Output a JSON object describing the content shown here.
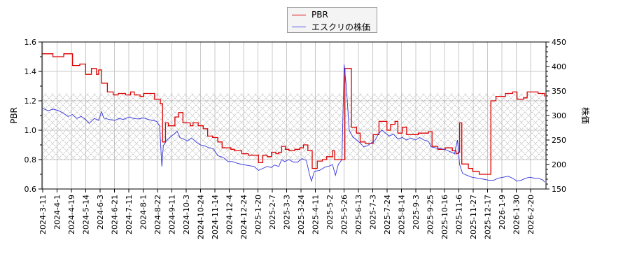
{
  "chart_data": {
    "type": "line",
    "title": "",
    "legend": {
      "position": "top-center",
      "entries": [
        {
          "label": "PBR",
          "color": "#dd0000"
        },
        {
          "label": "エスクリの株価",
          "color": "#3333dd"
        }
      ]
    },
    "y_left": {
      "label": "PBR",
      "range": [
        0.6,
        1.6
      ],
      "ticks": [
        "0.6",
        "0.8",
        "1.0",
        "1.2",
        "1.4",
        "1.6"
      ],
      "minor_step": 0.1
    },
    "y_right": {
      "label": "株価",
      "range": [
        150,
        450
      ],
      "ticks": [
        "150",
        "200",
        "250",
        "300",
        "350",
        "400",
        "450"
      ],
      "minor_step": 10
    },
    "x_ticks": [
      "2024-3-11",
      "2024-4-1",
      "2024-4-19",
      "2024-5-14",
      "2024-6-3",
      "2024-6-21",
      "2024-7-11",
      "2024-8-1",
      "2024-8-22",
      "2024-9-11",
      "2024-10-3",
      "2024-10-24",
      "2024-11-14",
      "2024-12-4",
      "2024-12-24",
      "2025-1-20",
      "2025-2-7",
      "2025-3-3",
      "2025-3-24",
      "2025-4-11",
      "2025-5-2",
      "2025-5-26",
      "2025-6-13",
      "2025-7-3",
      "2025-7-24",
      "2025-8-14",
      "2025-9-3",
      "2025-9-25",
      "2025-10-16",
      "2025-11-6",
      "2025-11-27",
      "2025-12-17",
      "2026-1-9",
      "2026-1-30",
      "2026-2-20"
    ],
    "grid": true,
    "shaded_band": {
      "pbr_range": [
        0.8,
        1.25
      ],
      "price_range": [
        210,
        344
      ],
      "pattern": "crosshatch"
    },
    "series": [
      {
        "name": "PBR",
        "axis": "left",
        "color": "#dd0000",
        "step": true,
        "points": [
          [
            0,
            1.52
          ],
          [
            1.5,
            1.5
          ],
          [
            3,
            1.52
          ],
          [
            4.2,
            1.44
          ],
          [
            5.2,
            1.45
          ],
          [
            6,
            1.38
          ],
          [
            6.8,
            1.42
          ],
          [
            7.5,
            1.38
          ],
          [
            7.8,
            1.41
          ],
          [
            8.2,
            1.32
          ],
          [
            9,
            1.26
          ],
          [
            9.8,
            1.24
          ],
          [
            10.5,
            1.25
          ],
          [
            11.5,
            1.24
          ],
          [
            12.2,
            1.26
          ],
          [
            12.7,
            1.24
          ],
          [
            13.5,
            1.23
          ],
          [
            14,
            1.25
          ],
          [
            15.5,
            1.21
          ],
          [
            16.3,
            1.18
          ],
          [
            16.6,
            0.92
          ],
          [
            17,
            1.05
          ],
          [
            17.4,
            1.03
          ],
          [
            18,
            1.03
          ],
          [
            18.3,
            1.09
          ],
          [
            18.8,
            1.12
          ],
          [
            19.4,
            1.05
          ],
          [
            20.4,
            1.03
          ],
          [
            20.8,
            1.05
          ],
          [
            21.5,
            1.03
          ],
          [
            22.2,
            1.01
          ],
          [
            22.8,
            0.96
          ],
          [
            23.5,
            0.95
          ],
          [
            24.2,
            0.92
          ],
          [
            24.8,
            0.88
          ],
          [
            26,
            0.87
          ],
          [
            26.5,
            0.86
          ],
          [
            27.5,
            0.84
          ],
          [
            28.4,
            0.83
          ],
          [
            29.2,
            0.83
          ],
          [
            29.8,
            0.78
          ],
          [
            30.4,
            0.83
          ],
          [
            31,
            0.82
          ],
          [
            31.6,
            0.85
          ],
          [
            32.2,
            0.84
          ],
          [
            32.6,
            0.85
          ],
          [
            33,
            0.89
          ],
          [
            33.5,
            0.87
          ],
          [
            34,
            0.86
          ],
          [
            34.8,
            0.87
          ],
          [
            35.5,
            0.88
          ],
          [
            36,
            0.9
          ],
          [
            36.6,
            0.86
          ],
          [
            37.2,
            0.74
          ],
          [
            37.9,
            0.79
          ],
          [
            38.6,
            0.8
          ],
          [
            39.2,
            0.82
          ],
          [
            39.6,
            0.82
          ],
          [
            40,
            0.86
          ],
          [
            40.3,
            0.8
          ],
          [
            41.2,
            0.8
          ],
          [
            41.7,
            1.42
          ],
          [
            42.6,
            1.02
          ],
          [
            43.3,
            0.98
          ],
          [
            43.8,
            0.92
          ],
          [
            44.5,
            0.91
          ],
          [
            45.3,
            0.91
          ],
          [
            45.6,
            0.97
          ],
          [
            46,
            0.97
          ],
          [
            46.4,
            1.06
          ],
          [
            47.5,
            1.0
          ],
          [
            48,
            1.04
          ],
          [
            48.6,
            1.06
          ],
          [
            49,
            0.98
          ],
          [
            49.6,
            1.02
          ],
          [
            50.2,
            0.97
          ],
          [
            51,
            0.97
          ],
          [
            51.8,
            0.98
          ],
          [
            53.2,
            0.99
          ],
          [
            53.7,
            0.89
          ],
          [
            54.5,
            0.87
          ],
          [
            55.5,
            0.88
          ],
          [
            56.5,
            0.86
          ],
          [
            57,
            0.84
          ],
          [
            57.3,
            0.85
          ],
          [
            57.5,
            1.05
          ],
          [
            57.8,
            0.77
          ],
          [
            58.7,
            0.74
          ],
          [
            59.3,
            0.72
          ],
          [
            60.2,
            0.7
          ],
          [
            61.3,
            0.7
          ],
          [
            61.8,
            1.2
          ],
          [
            62.5,
            1.23
          ],
          [
            63.8,
            1.25
          ],
          [
            64.8,
            1.26
          ],
          [
            65.4,
            1.21
          ],
          [
            66.3,
            1.22
          ],
          [
            66.8,
            1.26
          ],
          [
            68.3,
            1.25
          ],
          [
            69.2,
            1.23
          ]
        ]
      },
      {
        "name": "エスクリの株価",
        "axis": "right",
        "color": "#3333dd",
        "step": false,
        "points": [
          [
            0,
            315
          ],
          [
            0.8,
            310
          ],
          [
            1.6,
            313
          ],
          [
            2.4,
            309
          ],
          [
            3,
            304
          ],
          [
            3.6,
            298
          ],
          [
            4.2,
            302
          ],
          [
            4.8,
            294
          ],
          [
            5.4,
            298
          ],
          [
            6,
            292
          ],
          [
            6.5,
            284
          ],
          [
            7.2,
            294
          ],
          [
            7.8,
            290
          ],
          [
            8.2,
            308
          ],
          [
            8.5,
            295
          ],
          [
            9.2,
            292
          ],
          [
            10,
            290
          ],
          [
            10.6,
            294
          ],
          [
            11.2,
            292
          ],
          [
            12,
            297
          ],
          [
            12.6,
            294
          ],
          [
            13.2,
            293
          ],
          [
            14,
            295
          ],
          [
            14.6,
            292
          ],
          [
            15.2,
            290
          ],
          [
            15.8,
            288
          ],
          [
            16.2,
            278
          ],
          [
            16.5,
            196
          ],
          [
            16.7,
            238
          ],
          [
            17.2,
            250
          ],
          [
            17.8,
            258
          ],
          [
            18.2,
            262
          ],
          [
            18.6,
            268
          ],
          [
            19,
            255
          ],
          [
            19.5,
            252
          ],
          [
            20,
            248
          ],
          [
            20.6,
            254
          ],
          [
            21.2,
            246
          ],
          [
            21.8,
            240
          ],
          [
            22.4,
            238
          ],
          [
            23,
            234
          ],
          [
            23.6,
            232
          ],
          [
            24.2,
            218
          ],
          [
            25,
            214
          ],
          [
            25.6,
            206
          ],
          [
            26.2,
            206
          ],
          [
            27,
            202
          ],
          [
            27.6,
            200
          ],
          [
            28.4,
            198
          ],
          [
            29.2,
            196
          ],
          [
            29.8,
            188
          ],
          [
            30.4,
            192
          ],
          [
            31,
            196
          ],
          [
            31.6,
            194
          ],
          [
            32,
            199
          ],
          [
            32.6,
            196
          ],
          [
            33,
            210
          ],
          [
            33.4,
            206
          ],
          [
            34,
            210
          ],
          [
            34.6,
            205
          ],
          [
            35.2,
            205
          ],
          [
            35.8,
            212
          ],
          [
            36.4,
            208
          ],
          [
            36.8,
            182
          ],
          [
            37.1,
            166
          ],
          [
            37.5,
            186
          ],
          [
            38.2,
            188
          ],
          [
            39,
            195
          ],
          [
            39.6,
            197
          ],
          [
            40,
            200
          ],
          [
            40.4,
            178
          ],
          [
            40.8,
            200
          ],
          [
            41.3,
            210
          ],
          [
            41.6,
            404
          ],
          [
            41.9,
            360
          ],
          [
            42.3,
            270
          ],
          [
            42.8,
            256
          ],
          [
            43.3,
            250
          ],
          [
            43.8,
            244
          ],
          [
            44.3,
            236
          ],
          [
            44.8,
            238
          ],
          [
            45.3,
            244
          ],
          [
            45.8,
            248
          ],
          [
            46.3,
            262
          ],
          [
            46.8,
            270
          ],
          [
            47.3,
            264
          ],
          [
            47.8,
            258
          ],
          [
            48.4,
            262
          ],
          [
            49,
            252
          ],
          [
            49.6,
            255
          ],
          [
            50.2,
            250
          ],
          [
            50.8,
            254
          ],
          [
            51.4,
            250
          ],
          [
            52,
            255
          ],
          [
            52.6,
            250
          ],
          [
            53.2,
            247
          ],
          [
            53.6,
            236
          ],
          [
            54.2,
            234
          ],
          [
            55,
            232
          ],
          [
            55.6,
            230
          ],
          [
            56.2,
            226
          ],
          [
            56.8,
            222
          ],
          [
            57.2,
            250
          ],
          [
            57.5,
            200
          ],
          [
            57.9,
            182
          ],
          [
            58.5,
            178
          ],
          [
            59.2,
            174
          ],
          [
            60,
            172
          ],
          [
            60.8,
            170
          ],
          [
            61.5,
            168
          ],
          [
            62.2,
            168
          ],
          [
            62.8,
            172
          ],
          [
            63.5,
            174
          ],
          [
            64.2,
            176
          ],
          [
            64.8,
            172
          ],
          [
            65.4,
            166
          ],
          [
            66,
            168
          ],
          [
            66.6,
            172
          ],
          [
            67.2,
            174
          ],
          [
            67.8,
            172
          ],
          [
            68.4,
            172
          ],
          [
            69,
            168
          ],
          [
            69.2,
            164
          ]
        ]
      }
    ]
  }
}
